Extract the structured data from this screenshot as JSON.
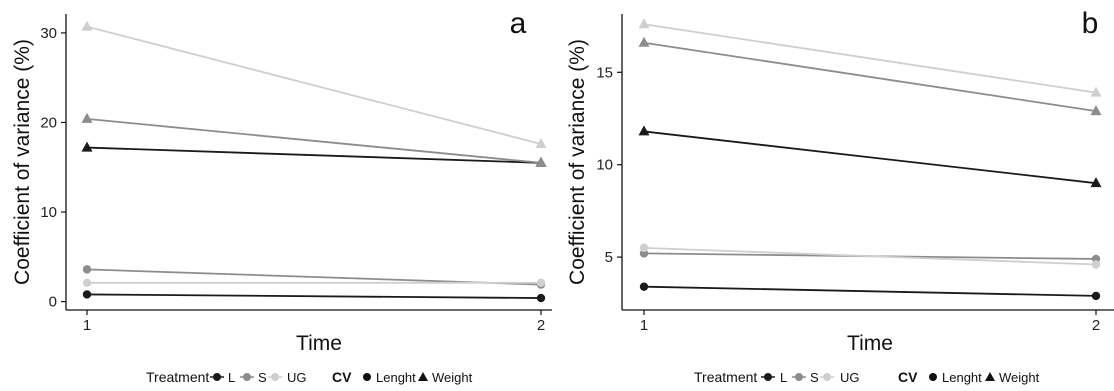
{
  "chart_data": [
    {
      "type": "line",
      "panel_label": "a",
      "xlabel": "Time",
      "ylabel": "Coefficient of variance (%)",
      "x_ticks": [
        "1",
        "2"
      ],
      "y_ticks": [
        "0",
        "10",
        "20",
        "30"
      ],
      "xlim": [
        1,
        2
      ],
      "ylim": [
        -0.6,
        32
      ],
      "grid": false,
      "series": [
        {
          "treatment": "L",
          "cv": "Weight",
          "color": "#1a1a1a",
          "marker": "triangle",
          "x": [
            1,
            2
          ],
          "values": [
            17.2,
            15.5
          ]
        },
        {
          "treatment": "S",
          "cv": "Weight",
          "color": "#8c8c8c",
          "marker": "triangle",
          "x": [
            1,
            2
          ],
          "values": [
            20.4,
            15.5
          ]
        },
        {
          "treatment": "UG",
          "cv": "Weight",
          "color": "#cfcfcf",
          "marker": "triangle",
          "x": [
            1,
            2
          ],
          "values": [
            30.7,
            17.6
          ]
        },
        {
          "treatment": "L",
          "cv": "Lenght",
          "color": "#1a1a1a",
          "marker": "circle",
          "x": [
            1,
            2
          ],
          "values": [
            0.8,
            0.4
          ]
        },
        {
          "treatment": "S",
          "cv": "Lenght",
          "color": "#8c8c8c",
          "marker": "circle",
          "x": [
            1,
            2
          ],
          "values": [
            3.6,
            1.9
          ]
        },
        {
          "treatment": "UG",
          "cv": "Lenght",
          "color": "#cfcfcf",
          "marker": "circle",
          "x": [
            1,
            2
          ],
          "values": [
            2.1,
            2.1
          ]
        }
      ]
    },
    {
      "type": "line",
      "panel_label": "b",
      "xlabel": "Time",
      "ylabel": "Coefficient of variance (%)",
      "x_ticks": [
        "1",
        "2"
      ],
      "y_ticks": [
        "5",
        "10",
        "15"
      ],
      "xlim": [
        1,
        2
      ],
      "ylim": [
        2.3,
        18.1
      ],
      "grid": false,
      "series": [
        {
          "treatment": "L",
          "cv": "Weight",
          "color": "#1a1a1a",
          "marker": "triangle",
          "x": [
            1,
            2
          ],
          "values": [
            11.8,
            9.0
          ]
        },
        {
          "treatment": "S",
          "cv": "Weight",
          "color": "#8c8c8c",
          "marker": "triangle",
          "x": [
            1,
            2
          ],
          "values": [
            16.6,
            12.9
          ]
        },
        {
          "treatment": "UG",
          "cv": "Weight",
          "color": "#cfcfcf",
          "marker": "triangle",
          "x": [
            1,
            2
          ],
          "values": [
            17.6,
            13.9
          ]
        },
        {
          "treatment": "L",
          "cv": "Lenght",
          "color": "#1a1a1a",
          "marker": "circle",
          "x": [
            1,
            2
          ],
          "values": [
            3.4,
            2.9
          ]
        },
        {
          "treatment": "S",
          "cv": "Lenght",
          "color": "#8c8c8c",
          "marker": "circle",
          "x": [
            1,
            2
          ],
          "values": [
            5.2,
            4.9
          ]
        },
        {
          "treatment": "UG",
          "cv": "Lenght",
          "color": "#cfcfcf",
          "marker": "circle",
          "x": [
            1,
            2
          ],
          "values": [
            5.5,
            4.6
          ]
        }
      ]
    }
  ],
  "legend": {
    "treatment_title": "Treatment",
    "treatment_items": [
      {
        "label": "L",
        "color": "#1a1a1a"
      },
      {
        "label": "S",
        "color": "#8c8c8c"
      },
      {
        "label": "UG",
        "color": "#cfcfcf"
      }
    ],
    "cv_title": "CV",
    "cv_items": [
      {
        "label": "Lenght",
        "marker": "circle"
      },
      {
        "label": "Weight",
        "marker": "triangle"
      }
    ]
  }
}
